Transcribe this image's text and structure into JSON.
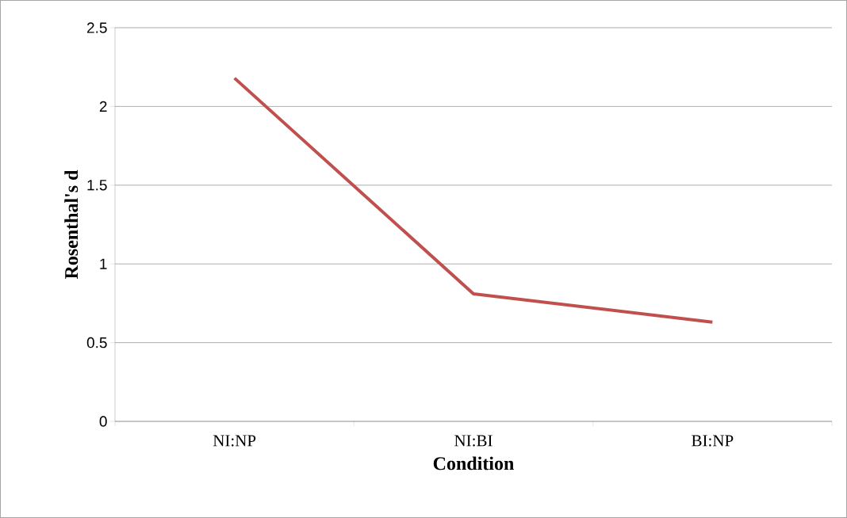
{
  "chart_data": {
    "type": "line",
    "xlabel": "Condition",
    "ylabel": "Rosenthal's d",
    "categories": [
      "NI:NP",
      "NI:BI",
      "BI:NP"
    ],
    "series": [
      {
        "color": "#c0504d",
        "values": [
          2.18,
          0.81,
          0.63
        ]
      }
    ],
    "ylim": [
      0,
      2.5
    ],
    "yticks": [
      0,
      0.5,
      1,
      1.5,
      2,
      2.5
    ],
    "grid": "y",
    "marker": "none",
    "line_style": "solid"
  }
}
